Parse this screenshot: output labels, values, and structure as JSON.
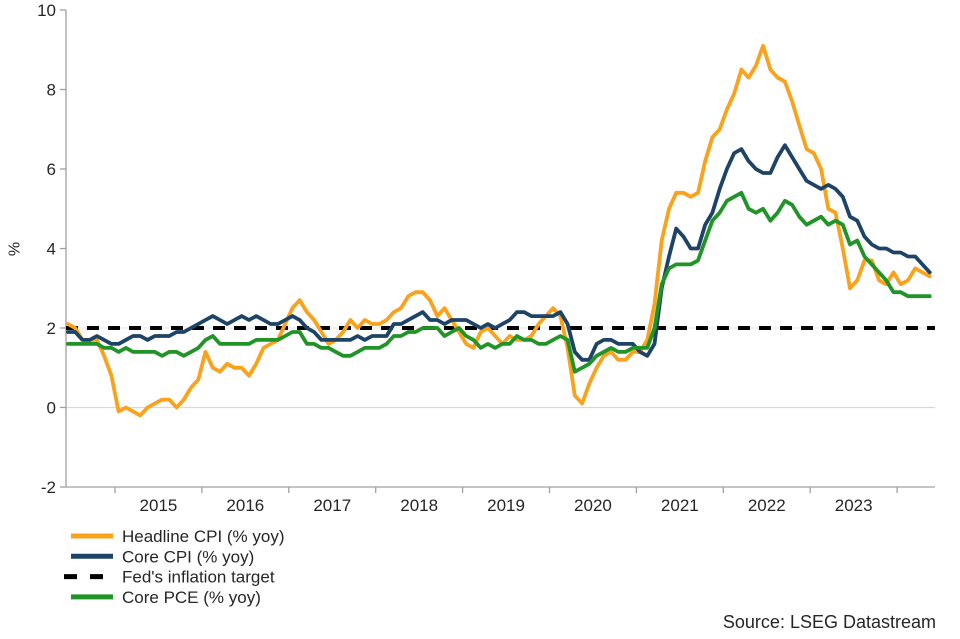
{
  "source": "Source: LSEG Datastream",
  "colors": {
    "headline_cpi": "#FAA21B",
    "core_cpi": "#1D4466",
    "core_pce": "#219428",
    "target": "#000000",
    "axis": "#A0A0A0",
    "gridline_zero": "#D9D9D9",
    "gridline_two": "#EBEBEB",
    "text": "#262626"
  },
  "chart_data": {
    "type": "line",
    "title": "",
    "xlabel": "",
    "ylabel": "%",
    "ylim": [
      -2,
      10
    ],
    "yticks": [
      10,
      8,
      6,
      4,
      2,
      0,
      -2
    ],
    "xticks": [
      2015,
      2016,
      2017,
      2018,
      2019,
      2020,
      2021,
      2022,
      2023,
      2024
    ],
    "xtick_labels": [
      "2015",
      "2016",
      "2017",
      "2018",
      "2019",
      "2020",
      "2021",
      "2022",
      "2023"
    ],
    "grid_values": [
      0,
      2
    ],
    "x_frequency": "monthly",
    "x_start": "2014-06",
    "x_end": "2024-05",
    "legend_position": "bottom-left",
    "target_line": {
      "label": "Fed's inflation target",
      "value": 2,
      "style": "dashed",
      "color": "#000000"
    },
    "legend_items": [
      {
        "label": "Headline CPI (% yoy)",
        "color": "#FAA21B",
        "dashed": false
      },
      {
        "label": "Core CPI (% yoy)",
        "color": "#1D4466",
        "dashed": false
      },
      {
        "label": "Fed's inflation target",
        "color": "#000000",
        "dashed": true
      },
      {
        "label": "Core PCE (% yoy)",
        "color": "#219428",
        "dashed": false
      }
    ],
    "series": [
      {
        "name": "Headline CPI (% yoy)",
        "color": "#FAA21B",
        "values": [
          2.1,
          2.0,
          1.7,
          1.7,
          1.7,
          1.3,
          0.8,
          -0.1,
          0.0,
          -0.1,
          -0.2,
          0.0,
          0.1,
          0.2,
          0.2,
          0.0,
          0.2,
          0.5,
          0.7,
          1.4,
          1.0,
          0.9,
          1.1,
          1.0,
          1.0,
          0.8,
          1.1,
          1.5,
          1.6,
          1.7,
          2.1,
          2.5,
          2.7,
          2.4,
          2.2,
          1.9,
          1.6,
          1.7,
          1.9,
          2.2,
          2.0,
          2.2,
          2.1,
          2.1,
          2.2,
          2.4,
          2.5,
          2.8,
          2.9,
          2.9,
          2.7,
          2.3,
          2.5,
          2.2,
          1.9,
          1.6,
          1.5,
          1.9,
          2.0,
          1.8,
          1.6,
          1.8,
          1.7,
          1.7,
          1.8,
          2.1,
          2.3,
          2.5,
          2.3,
          1.5,
          0.3,
          0.1,
          0.6,
          1.0,
          1.3,
          1.4,
          1.2,
          1.2,
          1.4,
          1.4,
          1.7,
          2.6,
          4.2,
          5.0,
          5.4,
          5.4,
          5.3,
          5.4,
          6.2,
          6.8,
          7.0,
          7.5,
          7.9,
          8.5,
          8.3,
          8.6,
          9.1,
          8.5,
          8.3,
          8.2,
          7.7,
          7.1,
          6.5,
          6.4,
          6.0,
          5.0,
          4.9,
          4.0,
          3.0,
          3.2,
          3.7,
          3.7,
          3.2,
          3.1,
          3.4,
          3.1,
          3.2,
          3.5,
          3.4,
          3.3
        ]
      },
      {
        "name": "Core CPI (% yoy)",
        "color": "#1D4466",
        "values": [
          1.9,
          1.9,
          1.7,
          1.7,
          1.8,
          1.7,
          1.6,
          1.6,
          1.7,
          1.8,
          1.8,
          1.7,
          1.8,
          1.8,
          1.8,
          1.9,
          1.9,
          2.0,
          2.1,
          2.2,
          2.3,
          2.2,
          2.1,
          2.2,
          2.3,
          2.2,
          2.3,
          2.2,
          2.1,
          2.1,
          2.2,
          2.3,
          2.2,
          2.0,
          1.9,
          1.7,
          1.7,
          1.7,
          1.7,
          1.7,
          1.8,
          1.7,
          1.8,
          1.8,
          1.8,
          2.1,
          2.1,
          2.2,
          2.3,
          2.4,
          2.2,
          2.2,
          2.1,
          2.2,
          2.2,
          2.2,
          2.1,
          2.0,
          2.1,
          2.0,
          2.1,
          2.2,
          2.4,
          2.4,
          2.3,
          2.3,
          2.3,
          2.3,
          2.4,
          2.1,
          1.4,
          1.2,
          1.2,
          1.6,
          1.7,
          1.7,
          1.6,
          1.6,
          1.6,
          1.4,
          1.3,
          1.6,
          3.0,
          3.8,
          4.5,
          4.3,
          4.0,
          4.0,
          4.6,
          4.9,
          5.5,
          6.0,
          6.4,
          6.5,
          6.2,
          6.0,
          5.9,
          5.9,
          6.3,
          6.6,
          6.3,
          6.0,
          5.7,
          5.6,
          5.5,
          5.6,
          5.5,
          5.3,
          4.8,
          4.7,
          4.3,
          4.1,
          4.0,
          4.0,
          3.9,
          3.9,
          3.8,
          3.8,
          3.6,
          3.4
        ]
      },
      {
        "name": "Core PCE (% yoy)",
        "color": "#219428",
        "values": [
          1.6,
          1.6,
          1.6,
          1.6,
          1.6,
          1.5,
          1.5,
          1.4,
          1.5,
          1.4,
          1.4,
          1.4,
          1.4,
          1.3,
          1.4,
          1.4,
          1.3,
          1.4,
          1.5,
          1.7,
          1.8,
          1.6,
          1.6,
          1.6,
          1.6,
          1.6,
          1.7,
          1.7,
          1.7,
          1.7,
          1.8,
          1.9,
          1.9,
          1.6,
          1.6,
          1.5,
          1.5,
          1.4,
          1.3,
          1.3,
          1.4,
          1.5,
          1.5,
          1.5,
          1.6,
          1.8,
          1.8,
          1.9,
          1.9,
          2.0,
          2.0,
          2.0,
          1.8,
          1.9,
          2.0,
          1.8,
          1.7,
          1.5,
          1.6,
          1.5,
          1.6,
          1.6,
          1.8,
          1.7,
          1.7,
          1.6,
          1.6,
          1.7,
          1.8,
          1.7,
          0.9,
          1.0,
          1.1,
          1.3,
          1.4,
          1.5,
          1.4,
          1.4,
          1.5,
          1.5,
          1.5,
          2.0,
          3.1,
          3.5,
          3.6,
          3.6,
          3.6,
          3.7,
          4.2,
          4.7,
          4.9,
          5.2,
          5.3,
          5.4,
          5.0,
          4.9,
          5.0,
          4.7,
          4.9,
          5.2,
          5.1,
          4.8,
          4.6,
          4.7,
          4.8,
          4.6,
          4.7,
          4.6,
          4.1,
          4.2,
          3.8,
          3.6,
          3.4,
          3.2,
          2.9,
          2.9,
          2.8,
          2.8,
          2.8,
          2.8
        ]
      }
    ]
  }
}
